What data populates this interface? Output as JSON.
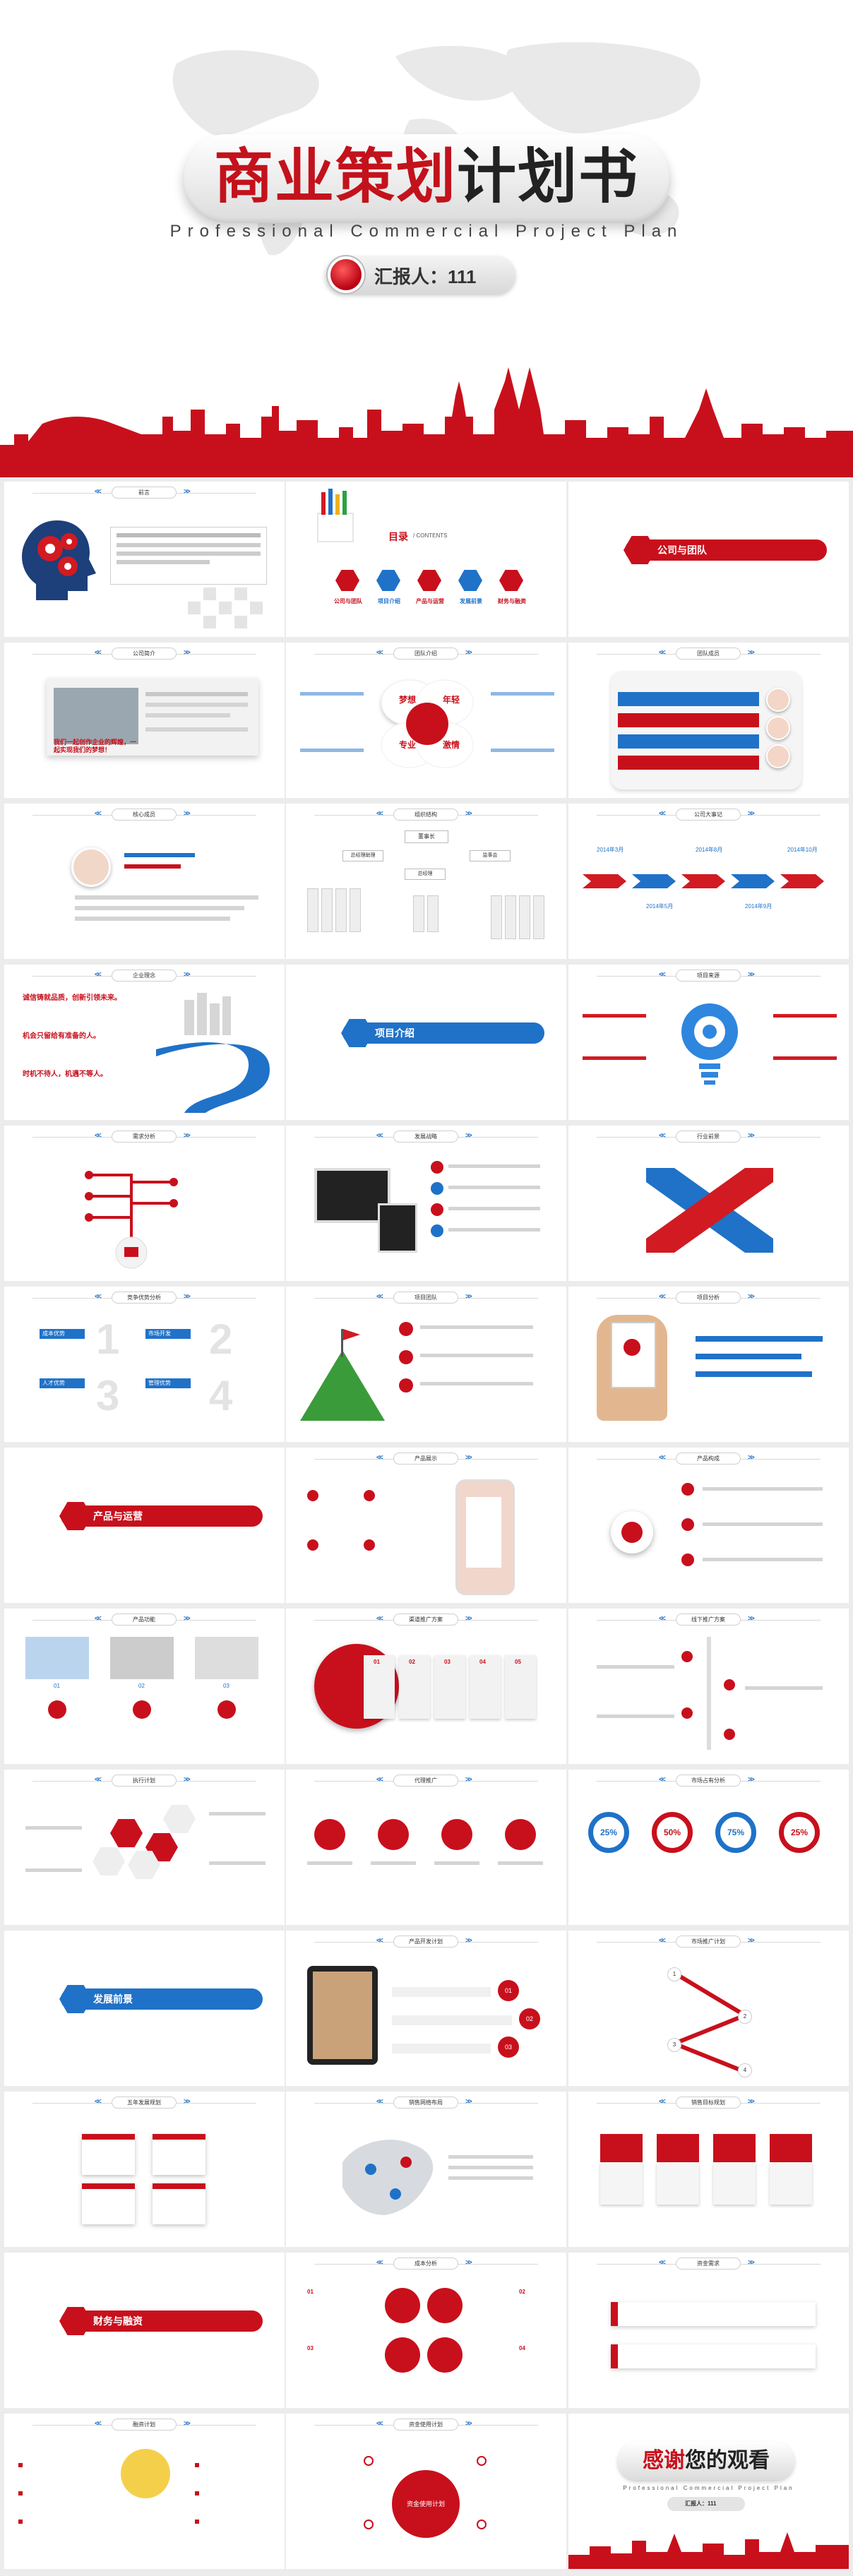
{
  "cover": {
    "title_red": "商业策划",
    "title_dark": "计划书",
    "subtitle": "Professional Commercial Project Plan",
    "reporter": "汇报人：111"
  },
  "colors": {
    "brand_red": "#c8101c",
    "brand_blue": "#1f72c8"
  },
  "slides": {
    "s1": {
      "header": "前言"
    },
    "s2": {
      "title": "目录",
      "subtitle": "/ CONTENTS",
      "items": [
        "公司与团队",
        "项目介绍",
        "产品与运营",
        "发展前景",
        "财务与融资"
      ]
    },
    "s3": {
      "section": "公司与团队"
    },
    "s4": {
      "header": "公司简介",
      "red_text": "我们一起创作企业的辉煌，一起实现我们的梦想！"
    },
    "s5": {
      "header": "团队介绍",
      "words": [
        "梦想",
        "年轻",
        "专业",
        "激情"
      ]
    },
    "s6": {
      "header": "团队成员"
    },
    "s7": {
      "header": "核心成员"
    },
    "s8": {
      "header": "组织结构",
      "top": "董事长",
      "mid": [
        "总经理助理",
        "总经理",
        "监事会"
      ]
    },
    "s9": {
      "header": "公司大事记",
      "years": [
        "2014年3月",
        "2014年5月",
        "2014年8月",
        "2014年9月",
        "2014年10月"
      ]
    },
    "s10": {
      "header": "企业理念",
      "lines": [
        "诚信铸就品质，创新引领未来。",
        "机会只留给有准备的人。",
        "时机不待人，机遇不等人。"
      ]
    },
    "s11": {
      "section": "项目介绍"
    },
    "s12": {
      "header": "项目来源"
    },
    "s13": {
      "header": "需求分析"
    },
    "s14": {
      "header": "发展战略"
    },
    "s15": {
      "header": "行业前景"
    },
    "s16": {
      "header": "竞争优势分析",
      "labels": [
        "成本优势",
        "市场开发",
        "人才优势",
        "管理优势"
      ],
      "nums": [
        "1",
        "2",
        "3",
        "4"
      ]
    },
    "s17": {
      "header": "项目团队"
    },
    "s18": {
      "header": "项目分析"
    },
    "s19": {
      "section": "产品与运营"
    },
    "s20": {
      "header": "产品展示"
    },
    "s21": {
      "header": "产品构成"
    },
    "s22": {
      "header": "产品功能",
      "nums": [
        "01",
        "02",
        "03"
      ]
    },
    "s23": {
      "header": "渠道推广方案",
      "steps": [
        "01",
        "02",
        "03",
        "04",
        "05"
      ]
    },
    "s24": {
      "header": "线下推广方案"
    },
    "s25": {
      "header": "执行计划"
    },
    "s26": {
      "header": "代理推广"
    },
    "s27": {
      "header": "市场占有分析",
      "percents": [
        "25%",
        "50%",
        "75%",
        "25%"
      ]
    },
    "s28": {
      "section": "发展前景"
    },
    "s29": {
      "header": "产品开发计划",
      "nums": [
        "01",
        "02",
        "03"
      ]
    },
    "s30": {
      "header": "市场推广计划",
      "nums": [
        "1",
        "2",
        "3",
        "4"
      ]
    },
    "s31": {
      "header": "五年发展规划"
    },
    "s32": {
      "header": "销售网络布局"
    },
    "s33": {
      "header": "销售目标规划"
    },
    "s34": {
      "section": "财务与融资"
    },
    "s35": {
      "header": "成本分析",
      "nums": [
        "01",
        "02",
        "03",
        "04"
      ]
    },
    "s36": {
      "header": "资金需求"
    },
    "s37": {
      "header": "融资计划"
    },
    "s38": {
      "header": "资金使用计划",
      "center": "资金使用计划"
    },
    "s39": {
      "thanks_red": "感谢",
      "thanks_dark": "您的观看",
      "subtitle": "Professional Commercial Project Plan",
      "reporter": "汇报人：111"
    }
  }
}
